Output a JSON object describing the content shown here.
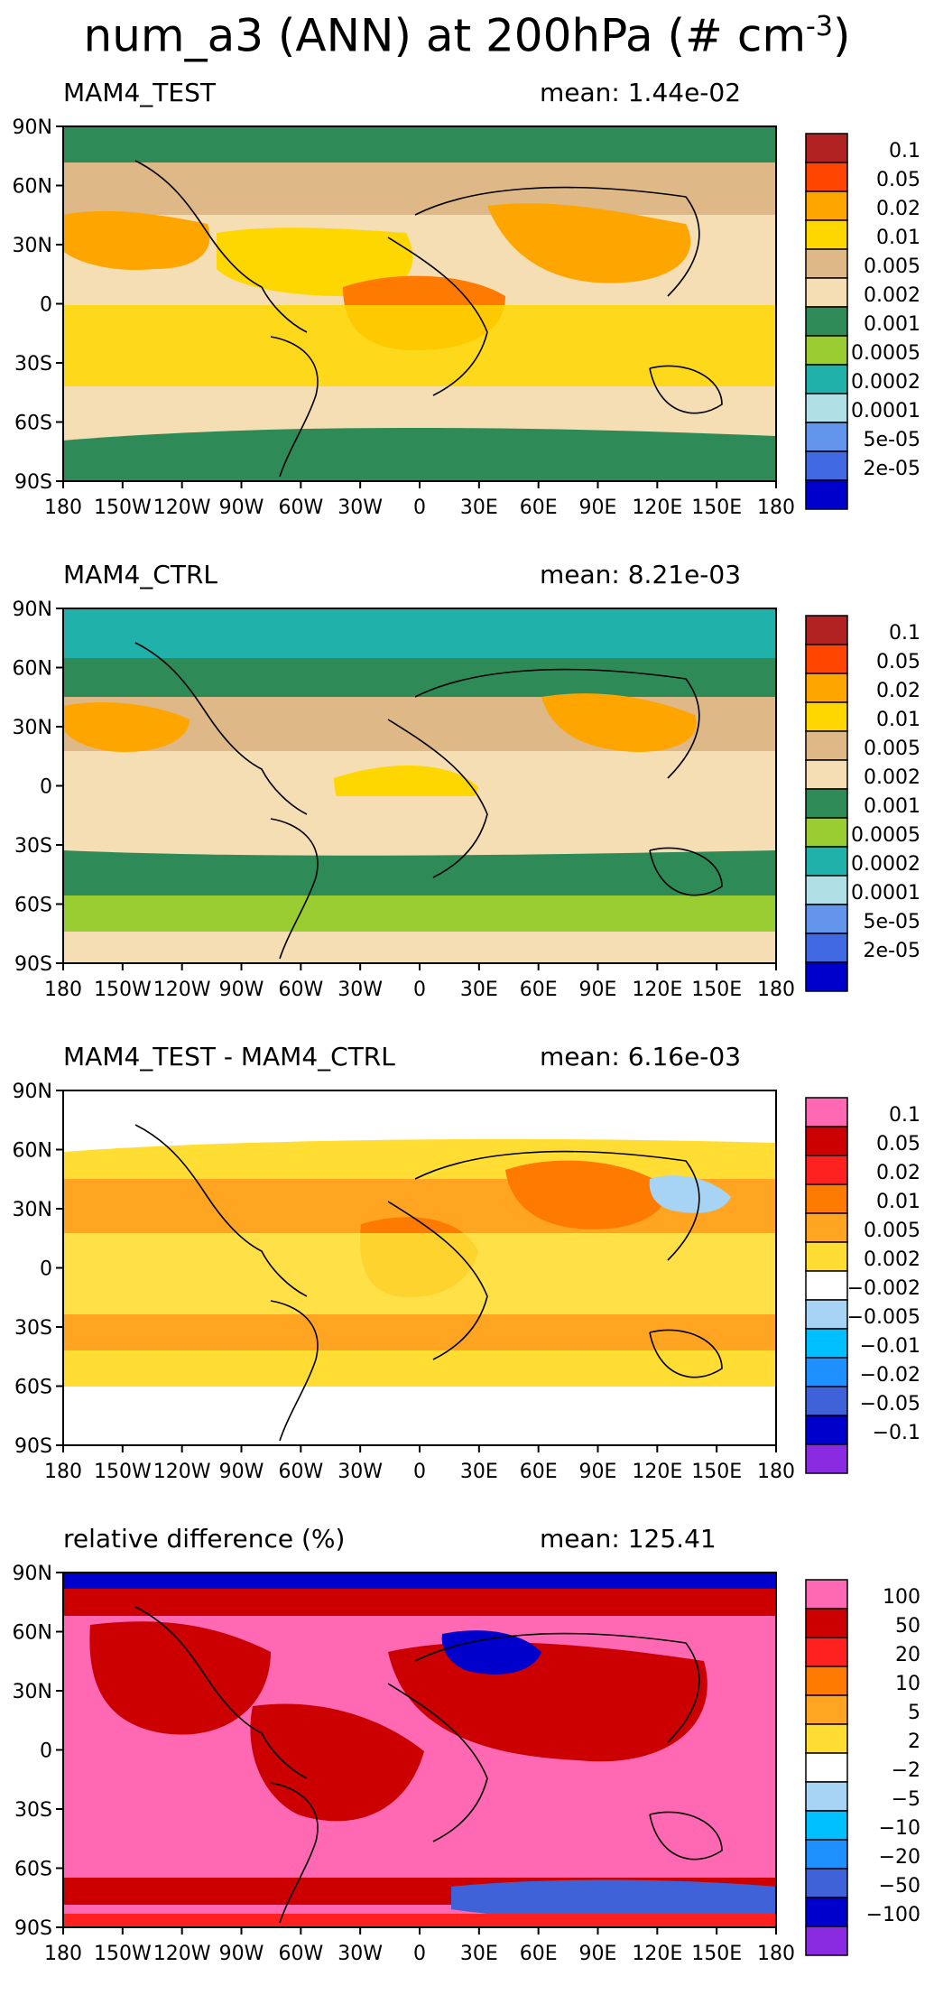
{
  "main_title": {
    "text": "num_a3 (ANN) at 200hPa (# cm",
    "exponent": "-3",
    "close": ")"
  },
  "panels": [
    {
      "title": "MAM4_TEST",
      "mean": "mean: 1.44e-02",
      "levels": [
        "0.1",
        "0.05",
        "0.02",
        "0.01",
        "0.005",
        "0.002",
        "0.001",
        "0.0005",
        "0.0002",
        "0.0001",
        "5e-05",
        "2e-05"
      ],
      "colors": [
        "#b22222",
        "#ff4500",
        "#ffa500",
        "#ffd700",
        "#deb887",
        "#f5deb3",
        "#2e8b57",
        "#9acd32",
        "#20b2aa",
        "#b0e0e6",
        "#6495ed",
        "#4169e1",
        "#0000cd"
      ]
    },
    {
      "title": "MAM4_CTRL",
      "mean": "mean: 8.21e-03",
      "levels": [
        "0.1",
        "0.05",
        "0.02",
        "0.01",
        "0.005",
        "0.002",
        "0.001",
        "0.0005",
        "0.0002",
        "0.0001",
        "5e-05",
        "2e-05"
      ],
      "colors": [
        "#b22222",
        "#ff4500",
        "#ffa500",
        "#ffd700",
        "#deb887",
        "#f5deb3",
        "#2e8b57",
        "#9acd32",
        "#20b2aa",
        "#b0e0e6",
        "#6495ed",
        "#4169e1",
        "#0000cd"
      ]
    },
    {
      "title": "MAM4_TEST - MAM4_CTRL",
      "mean": "mean: 6.16e-03",
      "levels": [
        "0.1",
        "0.05",
        "0.02",
        "0.01",
        "0.005",
        "0.002",
        "−0.002",
        "−0.005",
        "−0.01",
        "−0.02",
        "−0.05",
        "−0.1"
      ],
      "colors": [
        "#ff69b4",
        "#cc0000",
        "#ff2020",
        "#ff7a00",
        "#ffa522",
        "#ffdd33",
        "#ffffff",
        "#a7d3f5",
        "#00bfff",
        "#1e90ff",
        "#3f62d9",
        "#0000cd",
        "#8a2be2"
      ]
    },
    {
      "title": "relative difference (%)",
      "mean": "mean: 125.41",
      "levels": [
        "100",
        "50",
        "20",
        "10",
        "5",
        "2",
        "−2",
        "−5",
        "−10",
        "−20",
        "−50",
        "−100"
      ],
      "colors": [
        "#ff69b4",
        "#cc0000",
        "#ff2020",
        "#ff7a00",
        "#ffa522",
        "#ffdd33",
        "#ffffff",
        "#a7d3f5",
        "#00bfff",
        "#1e90ff",
        "#3f62d9",
        "#0000cd",
        "#8a2be2"
      ]
    }
  ],
  "axes": {
    "lat_labels": [
      "90N",
      "60N",
      "30N",
      "0",
      "30S",
      "60S",
      "90S"
    ],
    "lon_labels": [
      "180",
      "150W",
      "120W",
      "90W",
      "60W",
      "30W",
      "0",
      "30E",
      "60E",
      "90E",
      "120E",
      "150E",
      "180"
    ]
  },
  "chart_data": [
    {
      "type": "heatmap",
      "title": "MAM4_TEST",
      "mean": "mean: 1.44e-02",
      "x": "longitude",
      "y": "latitude",
      "xlim": [
        -180,
        180
      ],
      "ylim": [
        -90,
        90
      ],
      "levels": [
        "0.1",
        "0.05",
        "0.02",
        "0.01",
        "0.005",
        "0.002",
        "0.001",
        "0.0005",
        "0.0002",
        "0.0001",
        "5e-05",
        "2e-05"
      ]
    },
    {
      "type": "heatmap",
      "title": "MAM4_CTRL",
      "mean": "mean: 8.21e-03",
      "x": "longitude",
      "y": "latitude",
      "xlim": [
        -180,
        180
      ],
      "ylim": [
        -90,
        90
      ],
      "levels": [
        "0.1",
        "0.05",
        "0.02",
        "0.01",
        "0.005",
        "0.002",
        "0.001",
        "0.0005",
        "0.0002",
        "0.0001",
        "5e-05",
        "2e-05"
      ]
    },
    {
      "type": "heatmap",
      "title": "MAM4_TEST - MAM4_CTRL",
      "mean": "mean: 6.16e-03",
      "x": "longitude",
      "y": "latitude",
      "xlim": [
        -180,
        180
      ],
      "ylim": [
        -90,
        90
      ],
      "levels": [
        "0.1",
        "0.05",
        "0.02",
        "0.01",
        "0.005",
        "0.002",
        "-0.002",
        "-0.005",
        "-0.01",
        "-0.02",
        "-0.05",
        "-0.1"
      ]
    },
    {
      "type": "heatmap",
      "title": "relative difference (%)",
      "mean": "mean: 125.41",
      "x": "longitude",
      "y": "latitude",
      "xlim": [
        -180,
        180
      ],
      "ylim": [
        -90,
        90
      ],
      "levels": [
        "100",
        "50",
        "20",
        "10",
        "5",
        "2",
        "-2",
        "-5",
        "-10",
        "-20",
        "-50",
        "-100"
      ]
    }
  ]
}
